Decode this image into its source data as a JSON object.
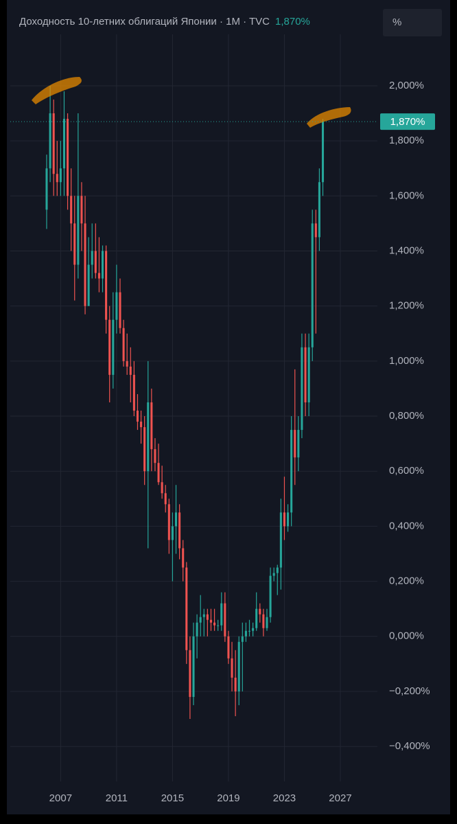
{
  "chart_data": {
    "type": "candlestick",
    "title": "Доходность 10-летних облигаций Японии · 1M · TVC",
    "last_value": {
      "value": 1.87,
      "label": "1,870%"
    },
    "unit_button": "%",
    "up_color": "#26a69a",
    "down_color": "#ef5350",
    "grid": true,
    "x": [
      2006.0,
      2006.25,
      2006.5,
      2006.75,
      2007.0,
      2007.25,
      2007.5,
      2007.75,
      2008.0,
      2008.25,
      2008.5,
      2008.75,
      2009.0,
      2009.25,
      2009.5,
      2009.75,
      2010.0,
      2010.25,
      2010.5,
      2010.75,
      2011.0,
      2011.25,
      2011.5,
      2011.75,
      2012.0,
      2012.25,
      2012.5,
      2012.75,
      2013.0,
      2013.25,
      2013.5,
      2013.75,
      2014.0,
      2014.25,
      2014.5,
      2014.75,
      2015.0,
      2015.25,
      2015.5,
      2015.75,
      2016.0,
      2016.25,
      2016.5,
      2016.75,
      2017.0,
      2017.25,
      2017.5,
      2017.75,
      2018.0,
      2018.25,
      2018.5,
      2018.75,
      2019.0,
      2019.25,
      2019.5,
      2019.75,
      2020.0,
      2020.25,
      2020.5,
      2020.75,
      2021.0,
      2021.25,
      2021.5,
      2021.75,
      2022.0,
      2022.25,
      2022.5,
      2022.75,
      2023.0,
      2023.25,
      2023.5,
      2023.75,
      2024.0,
      2024.25,
      2024.5,
      2024.75,
      2025.0,
      2025.25,
      2025.5,
      2025.75
    ],
    "open": [
      1.55,
      1.7,
      1.9,
      1.68,
      1.65,
      1.7,
      1.88,
      1.6,
      1.5,
      1.35,
      1.6,
      1.5,
      1.2,
      1.35,
      1.4,
      1.32,
      1.3,
      1.4,
      1.15,
      0.95,
      1.15,
      1.25,
      1.12,
      1.0,
      0.98,
      0.95,
      0.82,
      0.78,
      0.76,
      0.6,
      0.85,
      0.68,
      0.63,
      0.56,
      0.52,
      0.48,
      0.35,
      0.4,
      0.45,
      0.32,
      0.25,
      -0.05,
      -0.22,
      0.0,
      0.05,
      0.07,
      0.08,
      0.06,
      0.05,
      0.04,
      0.04,
      0.12,
      0.0,
      -0.08,
      -0.15,
      -0.2,
      -0.02,
      0.0,
      0.02,
      0.02,
      0.03,
      0.1,
      0.08,
      0.03,
      0.07,
      0.22,
      0.23,
      0.25,
      0.45,
      0.4,
      0.45,
      0.75,
      0.65,
      0.75,
      1.05,
      0.85,
      1.05,
      1.5,
      1.45,
      1.65
    ],
    "high": [
      1.75,
      2.0,
      1.95,
      1.8,
      1.8,
      1.98,
      1.9,
      1.7,
      1.6,
      1.9,
      1.65,
      1.6,
      1.45,
      1.5,
      1.5,
      1.45,
      1.42,
      1.42,
      1.2,
      1.25,
      1.35,
      1.3,
      1.15,
      1.1,
      1.05,
      1.0,
      0.88,
      0.82,
      0.8,
      1.0,
      0.9,
      0.72,
      0.7,
      0.62,
      0.55,
      0.5,
      0.45,
      0.55,
      0.48,
      0.35,
      0.27,
      0.0,
      0.05,
      0.08,
      0.15,
      0.1,
      0.1,
      0.1,
      0.1,
      0.06,
      0.16,
      0.16,
      0.02,
      -0.02,
      -0.05,
      0.0,
      0.05,
      0.05,
      0.06,
      0.05,
      0.16,
      0.12,
      0.1,
      0.1,
      0.25,
      0.25,
      0.26,
      0.5,
      0.58,
      0.48,
      0.8,
      0.97,
      0.8,
      1.1,
      1.1,
      1.1,
      1.55,
      1.55,
      1.7,
      1.88
    ],
    "low": [
      1.48,
      1.65,
      1.6,
      1.6,
      1.6,
      1.6,
      1.55,
      1.4,
      1.22,
      1.3,
      1.4,
      1.17,
      1.2,
      1.3,
      1.3,
      1.25,
      1.25,
      1.1,
      0.85,
      0.9,
      1.1,
      1.1,
      0.98,
      0.95,
      0.85,
      0.8,
      0.75,
      0.7,
      0.55,
      0.32,
      0.6,
      0.6,
      0.55,
      0.5,
      0.45,
      0.3,
      0.2,
      0.3,
      0.28,
      0.2,
      -0.1,
      -0.3,
      -0.25,
      -0.08,
      0.0,
      0.0,
      0.0,
      0.02,
      0.02,
      0.02,
      0.02,
      -0.02,
      -0.1,
      -0.2,
      -0.29,
      -0.25,
      -0.2,
      -0.02,
      0.0,
      0.0,
      0.02,
      0.05,
      0.0,
      0.02,
      0.05,
      0.2,
      0.15,
      0.17,
      0.35,
      0.38,
      0.4,
      0.55,
      0.6,
      0.72,
      0.8,
      0.8,
      1.0,
      1.1,
      1.4,
      1.6
    ],
    "close": [
      1.7,
      1.9,
      1.68,
      1.65,
      1.7,
      1.88,
      1.6,
      1.5,
      1.35,
      1.6,
      1.5,
      1.2,
      1.35,
      1.4,
      1.32,
      1.3,
      1.4,
      1.15,
      0.95,
      1.15,
      1.25,
      1.12,
      1.0,
      0.98,
      0.95,
      0.82,
      0.78,
      0.76,
      0.6,
      0.85,
      0.68,
      0.63,
      0.56,
      0.52,
      0.48,
      0.35,
      0.4,
      0.45,
      0.32,
      0.25,
      -0.05,
      -0.22,
      0.0,
      0.05,
      0.07,
      0.08,
      0.06,
      0.05,
      0.04,
      0.04,
      0.12,
      0.0,
      -0.08,
      -0.15,
      -0.2,
      -0.02,
      0.0,
      0.02,
      0.02,
      0.03,
      0.1,
      0.08,
      0.03,
      0.07,
      0.22,
      0.23,
      0.25,
      0.45,
      0.4,
      0.45,
      0.75,
      0.65,
      0.75,
      1.05,
      0.85,
      1.05,
      1.5,
      1.45,
      1.65,
      1.87
    ],
    "xlim": [
      2003.4,
      2029.65
    ],
    "xticks": [
      2007,
      2011,
      2015,
      2019,
      2023,
      2027
    ],
    "ylim": [
      -0.507,
      2.162
    ],
    "yticks": [
      {
        "value": 2,
        "label": "2,000%"
      },
      {
        "value": 1.8,
        "label": "1,800%"
      },
      {
        "value": 1.6,
        "label": "1,600%"
      },
      {
        "value": 1.4,
        "label": "1,400%"
      },
      {
        "value": 1.2,
        "label": "1,200%"
      },
      {
        "value": 1,
        "label": "1,000%"
      },
      {
        "value": 0.8,
        "label": "0,800%"
      },
      {
        "value": 0.6,
        "label": "0,600%"
      },
      {
        "value": 0.4,
        "label": "0,400%"
      },
      {
        "value": 0.2,
        "label": "0,200%"
      },
      {
        "value": 0,
        "label": "0,000%"
      },
      {
        "value": -0.2,
        "label": "−0,200%"
      },
      {
        "value": -0.4,
        "label": "−0,400%"
      }
    ]
  }
}
